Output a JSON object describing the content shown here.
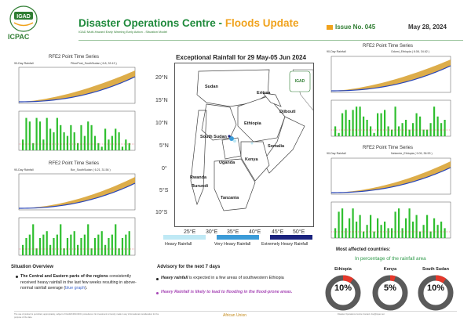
{
  "header": {
    "logo_text": "IGAD",
    "org": "ICPAC",
    "title_main": "Disaster Operations Centre - ",
    "title_accent": "Floods Update",
    "subtitle": "IGAD Multi-Hazard Early Warning Early Action - Situation Model",
    "issue": "Issue No. 045",
    "date": "May 28, 2024"
  },
  "charts": {
    "panel_title": "RFE2 Point Time Series",
    "panel_1": {
      "label_90day": "90-Day Rainfall",
      "location": "PiborPost_SouthSudan ( 6.8, 33.13 )",
      "ylabel_top": "Rainfall vs Normal (mm)",
      "ylabel_bottom": "Daily Rainfall (mm)",
      "xlabel": "Date"
    },
    "panel_2": {
      "label_90day": "90-Day Rainfall",
      "location": "Bor_SouthSudan ( 6.21, 31.56 )",
      "ylabel_top": "Rainfall vs Normal (mm)",
      "ylabel_bottom": "Daily Rainfall (mm)",
      "xlabel": "Date"
    },
    "panel_3": {
      "label_90day": "90-Day Rainfall",
      "location": "Odomi_Ethiopia ( 8.08, 34.62 )",
      "ylabel_top": "Rainfall vs Normal (mm)",
      "ylabel_bottom": "Daily Rainfall (mm)",
      "xlabel": "Date"
    },
    "panel_4": {
      "label_90day": "90-Day Rainfall",
      "location": "Nekemte_Ethiopia ( 9.09, 36.53 )",
      "ylabel_top": "Rainfall vs Normal (mm)",
      "ylabel_bottom": "Daily Rainfall (mm)",
      "xlabel": "Date"
    }
  },
  "map": {
    "title": "Exceptional Rainfall for 29 May-05 Jun 2024",
    "lat_ticks": [
      "20°N",
      "15°N",
      "10°N",
      "5°N",
      "0°",
      "5°S",
      "10°S"
    ],
    "lon_ticks": [
      "25°E",
      "30°E",
      "35°E",
      "40°E",
      "45°E",
      "50°E"
    ],
    "countries": [
      "Sudan",
      "Eritrea",
      "Djibouti",
      "Ethiopia",
      "South Sudan",
      "Somalia",
      "Uganda",
      "Kenya",
      "Rwanda",
      "Burundi",
      "Tanzania"
    ],
    "legend": [
      {
        "label": "Heavy Rainfall",
        "color": "#bfe9f5"
      },
      {
        "label": "Very Heavy Rainfall",
        "color": "#3b9bd8"
      },
      {
        "label": "Extremely Heavy Rainfall",
        "color": "#1a237e"
      }
    ]
  },
  "situation": {
    "title": "Situation Overview",
    "bold": "The Central and Eastern parts of the regions",
    "text": " consistently received heavy rainfall in the last few weeks resulting in above-normal rainfall average (",
    "link": "blue graph",
    "end": ")."
  },
  "advisory": {
    "title": "Advisory for the next 7 days",
    "item1_bold": "Heavy rainfall",
    "item1_text": " is expected in a few areas of southwestern Ethiopia",
    "item2": "Heavy Rainfall is likely to lead to flooding in the flood-prone areas."
  },
  "affected": {
    "title": "Most affected countries:",
    "subtitle": "In percentage of the rainfall area",
    "countries": [
      {
        "name": "Ethiopia",
        "value": "10%",
        "fraction": 0.1
      },
      {
        "name": "Kenya",
        "value": "5%",
        "fraction": 0.05
      },
      {
        "name": "South Sudan",
        "value": "10%",
        "fraction": 0.1
      }
    ]
  },
  "footer": {
    "left": "The use of product is permitted, appropriately, subject of IGAD/ICPAC/DOC procedures. No investment is hereby made in any informational consideration for the purpose of the data.",
    "right": "Disaster Operations Centre Contact: doc@icpac.net",
    "au": "African Union"
  },
  "colors": {
    "green": "#1f8a3c",
    "orange": "#f0a21c",
    "donut_red": "#e5382b",
    "donut_grey": "#5a5a5a"
  }
}
